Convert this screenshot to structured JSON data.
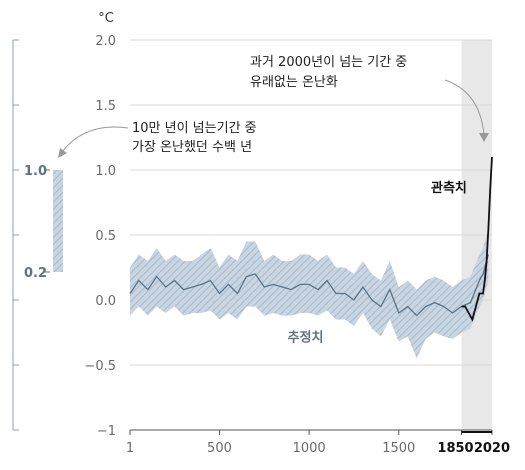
{
  "chart_data": {
    "type": "line",
    "unit": "°C",
    "ylim": [
      -1.0,
      2.0
    ],
    "xlim": [
      1,
      2020
    ],
    "y_ticks": [
      "2.0",
      "1.5",
      "1.0",
      "0.5",
      "0.0",
      "−0.5",
      "−1"
    ],
    "y_tick_values": [
      2.0,
      1.5,
      1.0,
      0.5,
      0.0,
      -0.5,
      -1.0
    ],
    "x_ticks": [
      "1",
      "500",
      "1000",
      "1500"
    ],
    "x_tick_values": [
      1,
      500,
      1000,
      1500
    ],
    "x_ticks_bold": [
      "1850",
      "2020"
    ],
    "x_ticks_bold_values": [
      1850,
      2020
    ],
    "highlight_band": {
      "x_from": 1850,
      "x_to": 2020
    },
    "series": [
      {
        "name": "추정치",
        "kind": "reconstruction",
        "color": "#5b7389",
        "band_color": "#b7c7d6",
        "x": [
          1,
          50,
          100,
          150,
          200,
          250,
          300,
          350,
          400,
          450,
          500,
          550,
          600,
          650,
          700,
          750,
          800,
          850,
          900,
          950,
          1000,
          1050,
          1100,
          1150,
          1200,
          1250,
          1300,
          1350,
          1400,
          1450,
          1500,
          1550,
          1600,
          1650,
          1700,
          1750,
          1800,
          1850,
          1900,
          1950,
          1970,
          2000
        ],
        "y": [
          0.05,
          0.15,
          0.08,
          0.18,
          0.1,
          0.15,
          0.08,
          0.1,
          0.12,
          0.15,
          0.05,
          0.12,
          0.05,
          0.18,
          0.2,
          0.1,
          0.12,
          0.1,
          0.08,
          0.12,
          0.12,
          0.08,
          0.15,
          0.05,
          0.05,
          0.0,
          0.1,
          0.0,
          -0.05,
          0.08,
          -0.1,
          -0.05,
          -0.12,
          -0.05,
          -0.02,
          -0.05,
          -0.1,
          -0.05,
          -0.02,
          0.15,
          0.2,
          0.35
        ],
        "upper": [
          0.25,
          0.35,
          0.3,
          0.4,
          0.3,
          0.35,
          0.3,
          0.3,
          0.35,
          0.4,
          0.25,
          0.35,
          0.3,
          0.45,
          0.45,
          0.3,
          0.35,
          0.3,
          0.3,
          0.35,
          0.35,
          0.3,
          0.35,
          0.25,
          0.25,
          0.2,
          0.3,
          0.2,
          0.15,
          0.3,
          0.1,
          0.15,
          0.08,
          0.15,
          0.18,
          0.15,
          0.1,
          0.15,
          0.18,
          0.35,
          0.4,
          0.55
        ],
        "lower": [
          -0.12,
          -0.05,
          -0.12,
          -0.05,
          -0.1,
          -0.05,
          -0.12,
          -0.1,
          -0.1,
          -0.08,
          -0.15,
          -0.1,
          -0.15,
          -0.05,
          -0.05,
          -0.12,
          -0.1,
          -0.12,
          -0.12,
          -0.1,
          -0.1,
          -0.12,
          -0.08,
          -0.15,
          -0.15,
          -0.2,
          -0.1,
          -0.22,
          -0.28,
          -0.15,
          -0.32,
          -0.28,
          -0.45,
          -0.3,
          -0.25,
          -0.28,
          -0.3,
          -0.25,
          -0.22,
          -0.05,
          0.0,
          0.15
        ]
      },
      {
        "name": "관측치",
        "kind": "observed",
        "color": "#111111",
        "x": [
          1850,
          1870,
          1890,
          1910,
          1930,
          1950,
          1970,
          1980,
          1990,
          2000,
          2010,
          2020
        ],
        "y": [
          -0.05,
          -0.05,
          -0.1,
          -0.15,
          -0.05,
          0.05,
          0.05,
          0.15,
          0.3,
          0.55,
          0.85,
          1.1
        ]
      }
    ],
    "side_range": {
      "low": 0.2,
      "high": 1.0,
      "low_label": "0.2",
      "high_label": "1.0"
    },
    "annotations": [
      {
        "line1": "10만 년이 넘는기간 중",
        "line2": "가장 온난했던 수백 년"
      },
      {
        "line1": "과거 2000년이 넘는 기간 중",
        "line2": "유래없는 온난화"
      }
    ]
  },
  "colors": {
    "highlight": "#e8e8e8",
    "grid": "#d9d9d9",
    "axis": "#555555",
    "side_axis": "#8aa0b4"
  }
}
